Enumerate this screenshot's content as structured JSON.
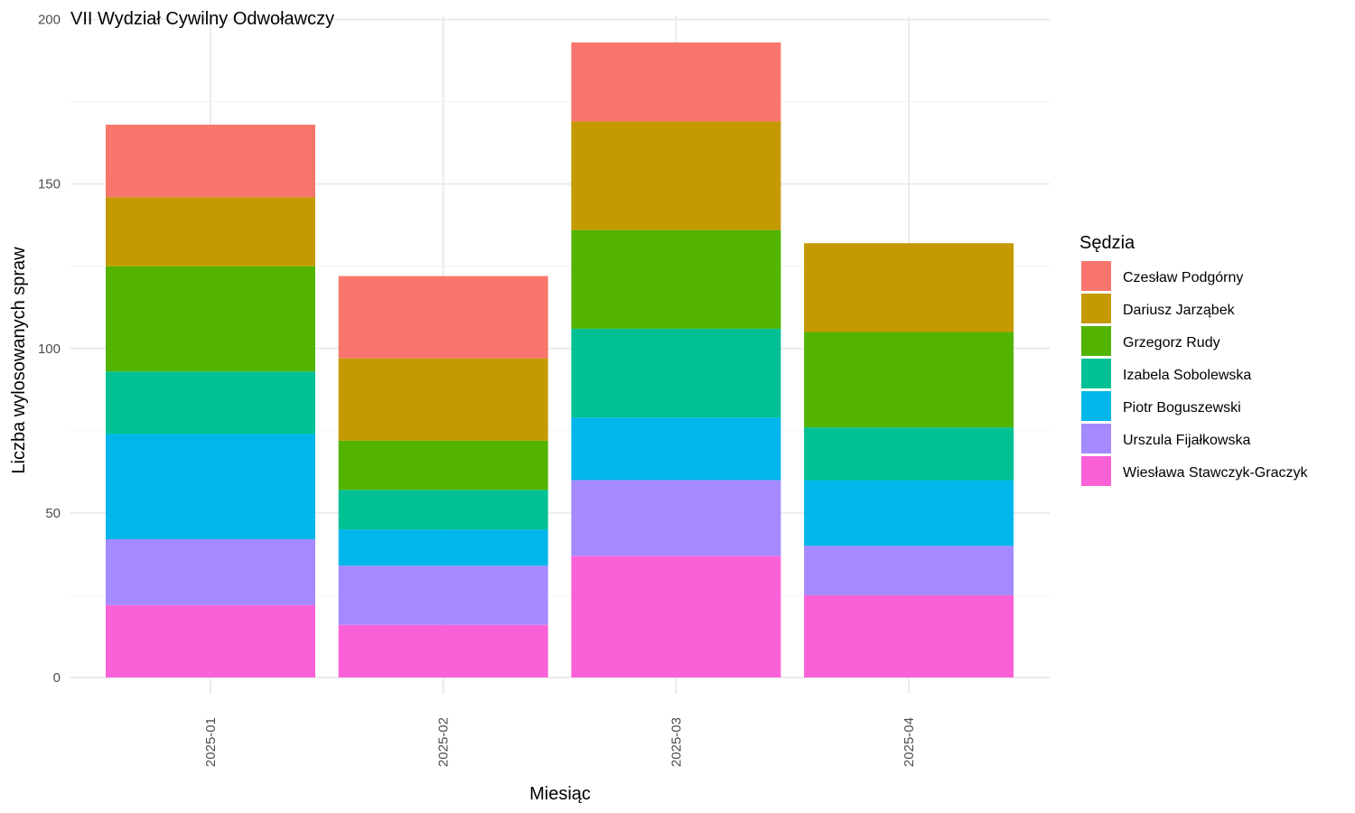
{
  "chart_data": {
    "type": "bar",
    "stacked": true,
    "title": "VII Wydział Cywilny Odwoławczy",
    "xlabel": "Miesiąc",
    "ylabel": "Liczba wylosowanych spraw",
    "ylim": [
      0,
      200
    ],
    "yticks": [
      0,
      50,
      100,
      150,
      200
    ],
    "grid": true,
    "legend": {
      "title": "Sędzia",
      "position": "right"
    },
    "categories": [
      "2025-01",
      "2025-02",
      "2025-03",
      "2025-04"
    ],
    "series": [
      {
        "name": "Czesław Podgórny",
        "color": "#F8766D",
        "values": [
          22,
          25,
          24,
          0
        ]
      },
      {
        "name": "Dariusz Jarząbek",
        "color": "#C49A00",
        "values": [
          21,
          25,
          33,
          27
        ]
      },
      {
        "name": "Grzegorz Rudy",
        "color": "#53B400",
        "values": [
          32,
          15,
          30,
          29
        ]
      },
      {
        "name": "Izabela Sobolewska",
        "color": "#00C094",
        "values": [
          19,
          12,
          27,
          16
        ]
      },
      {
        "name": "Piotr Boguszewski",
        "color": "#00B6EB",
        "values": [
          32,
          11,
          19,
          20
        ]
      },
      {
        "name": "Urszula Fijałkowska",
        "color": "#A58AFF",
        "values": [
          20,
          18,
          23,
          15
        ]
      },
      {
        "name": "Wiesława Stawczyk-Graczyk",
        "color": "#FB61D7",
        "values": [
          22,
          16,
          37,
          25
        ]
      }
    ]
  }
}
